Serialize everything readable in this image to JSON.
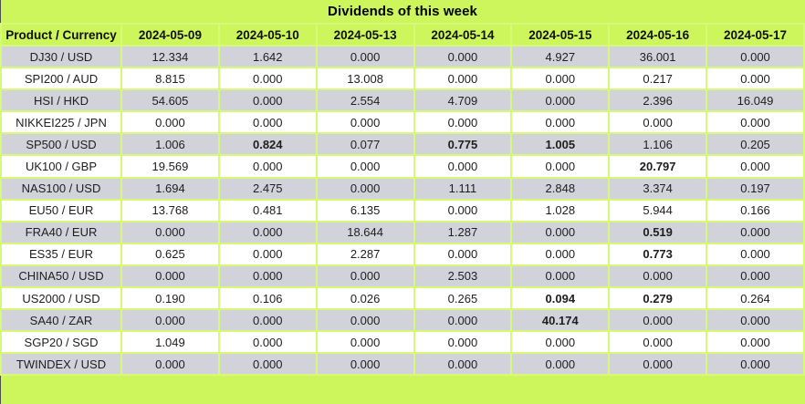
{
  "chart_data": {
    "type": "table",
    "title": "Dividends of this week",
    "columns": [
      "Product / Currency",
      "2024-05-09",
      "2024-05-10",
      "2024-05-13",
      "2024-05-14",
      "2024-05-15",
      "2024-05-16",
      "2024-05-17"
    ],
    "rows": [
      {
        "product": "DJ30 / USD",
        "values": [
          "12.334",
          "1.642",
          "0.000",
          "0.000",
          "4.927",
          "36.001",
          "0.000"
        ],
        "bold": []
      },
      {
        "product": "SPI200 / AUD",
        "values": [
          "8.815",
          "0.000",
          "13.008",
          "0.000",
          "0.000",
          "0.217",
          "0.000"
        ],
        "bold": []
      },
      {
        "product": "HSI / HKD",
        "values": [
          "54.605",
          "0.000",
          "2.554",
          "4.709",
          "0.000",
          "2.396",
          "16.049"
        ],
        "bold": []
      },
      {
        "product": "NIKKEI225 / JPN",
        "values": [
          "0.000",
          "0.000",
          "0.000",
          "0.000",
          "0.000",
          "0.000",
          "0.000"
        ],
        "bold": []
      },
      {
        "product": "SP500 / USD",
        "values": [
          "1.006",
          "0.824",
          "0.077",
          "0.775",
          "1.005",
          "1.106",
          "0.205"
        ],
        "bold": [
          1,
          3,
          4
        ]
      },
      {
        "product": "UK100 / GBP",
        "values": [
          "19.569",
          "0.000",
          "0.000",
          "0.000",
          "0.000",
          "20.797",
          "0.000"
        ],
        "bold": [
          5
        ]
      },
      {
        "product": "NAS100 / USD",
        "values": [
          "1.694",
          "2.475",
          "0.000",
          "1.111",
          "2.848",
          "3.374",
          "0.197"
        ],
        "bold": []
      },
      {
        "product": "EU50 / EUR",
        "values": [
          "13.768",
          "0.481",
          "6.135",
          "0.000",
          "1.028",
          "5.944",
          "0.166"
        ],
        "bold": []
      },
      {
        "product": "FRA40 / EUR",
        "values": [
          "0.000",
          "0.000",
          "18.644",
          "1.287",
          "0.000",
          "0.519",
          "0.000"
        ],
        "bold": [
          5
        ]
      },
      {
        "product": "ES35 / EUR",
        "values": [
          "0.625",
          "0.000",
          "2.287",
          "0.000",
          "0.000",
          "0.773",
          "0.000"
        ],
        "bold": [
          5
        ]
      },
      {
        "product": "CHINA50 / USD",
        "values": [
          "0.000",
          "0.000",
          "0.000",
          "2.503",
          "0.000",
          "0.000",
          "0.000"
        ],
        "bold": []
      },
      {
        "product": "US2000 / USD",
        "values": [
          "0.190",
          "0.106",
          "0.026",
          "0.265",
          "0.094",
          "0.279",
          "0.264"
        ],
        "bold": [
          4,
          5
        ]
      },
      {
        "product": "SA40 / ZAR",
        "values": [
          "0.000",
          "0.000",
          "0.000",
          "0.000",
          "40.174",
          "0.000",
          "0.000"
        ],
        "bold": [
          4
        ]
      },
      {
        "product": "SGP20 / SGD",
        "values": [
          "1.049",
          "0.000",
          "0.000",
          "0.000",
          "0.000",
          "0.000",
          "0.000"
        ],
        "bold": []
      },
      {
        "product": "TWINDEX / USD",
        "values": [
          "0.000",
          "0.000",
          "0.000",
          "0.000",
          "0.000",
          "0.000",
          "0.000"
        ],
        "bold": []
      }
    ]
  },
  "colors": {
    "accent_green": "#cdf55c",
    "border_green": "#d6fa75",
    "row_gray": "#d2d3da",
    "row_white": "#ffffff",
    "text": "#1e1e1e"
  }
}
